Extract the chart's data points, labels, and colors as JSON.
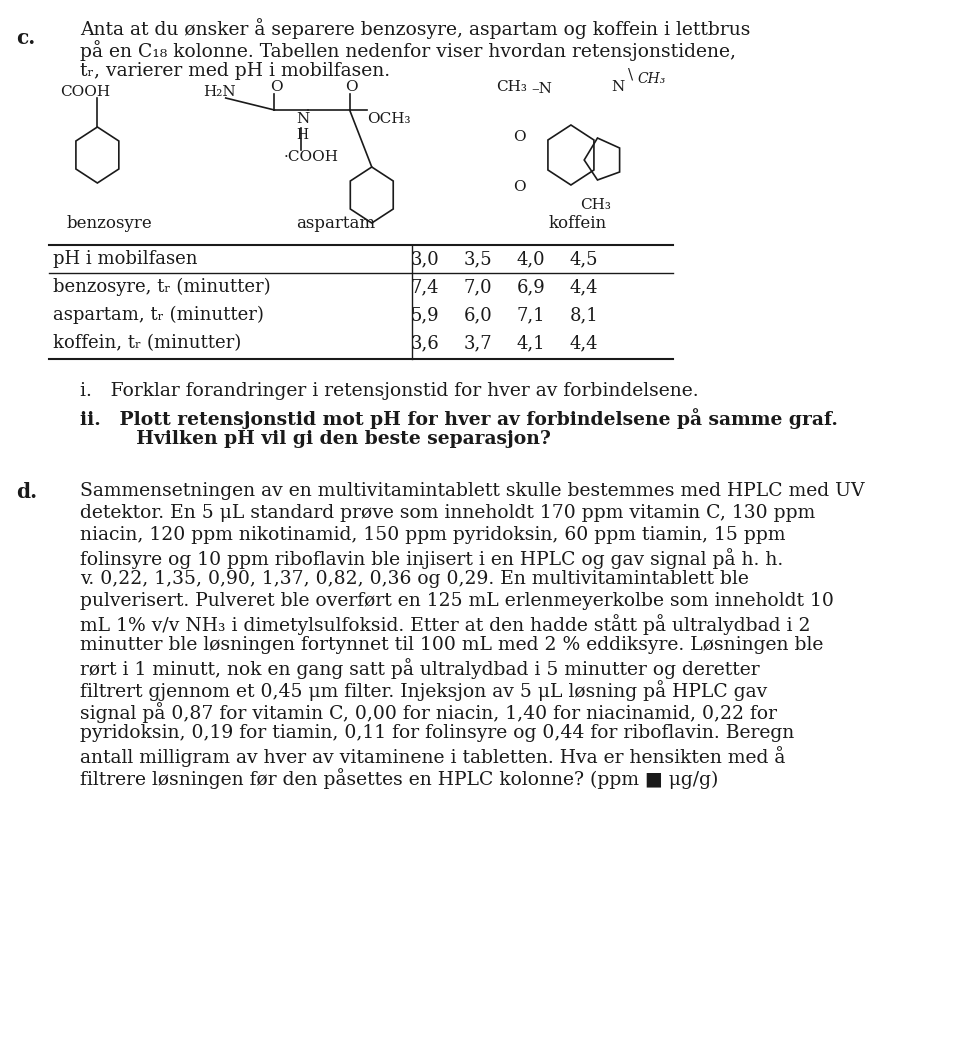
{
  "background_color": "#f5f5f0",
  "text_color": "#1a1a1a",
  "figsize": [
    9.6,
    10.44
  ],
  "dpi": 100,
  "c_label": "c.",
  "c_text_line1": "Anta at du ønsker å separere benzosyre, aspartam og koffein i lettbrus",
  "c_text_line2": "på en C₁₈ kolonne. Tabellen nedenfor viser hvordan retensjonstidene,",
  "c_text_line3": "tᵣ, varierer med pH i mobilfasen.",
  "chem_benzosyre": "benzosyre",
  "chem_aspartam": "aspartam",
  "chem_koffein": "koffein",
  "table_header": [
    "pH i mobilfasen",
    "3,0",
    "3,5",
    "4,0",
    "4,5"
  ],
  "table_row1": [
    "benzosyre, tᵣ (minutter)",
    "7,4",
    "7,0",
    "6,9",
    "4,4"
  ],
  "table_row2": [
    "aspartam, tᵣ (minutter)",
    "5,9",
    "6,0",
    "7,1",
    "8,1"
  ],
  "table_row3": [
    "koffein, tᵣ (minutter)",
    "3,6",
    "3,7",
    "4,1",
    "4,4"
  ],
  "i_text": "i. Forklar forandringer i retensjonstid for hver av forbindelsene.",
  "ii_text_line1": "ii. Plott retensjonstid mot pH for hver av forbindelsene på samme graf.",
  "ii_text_line2": "   Hvilken pH vil gi den beste separasjon?",
  "d_label": "d.",
  "d_text": "Sammensetningen av en multivitamintablett skulle bestemmes med HPLC med UV detektor. En 5 μL standard prøve som inneholdt 170 ppm vitamin C, 130 ppm niacin, 120 ppm nikotinamid, 150 ppm pyridoksin, 60 ppm tiamin, 15 ppm folinsyre og 10 ppm riboflavin ble injisert i en HPLC og gav signal på h. h. v. 0,22, 1,35, 0,90, 1,37, 0,82, 0,36 og 0,29. En multivitamintablett ble pulverisert. Pulveret ble overført en 125 mL erlenmeyerkolbe som inneholdt 10 mL 1% v/v NH₃ i dimetylsulfoksid. Etter at den hadde stått på ultralydbad i 2 minutter ble løsningen fortynnet til 100 mL med 2 % eddiksyre. Løsningen ble rørt i 1 minutt, nok en gang satt på ultralydbad i 5 minutter og deretter filtrert gjennom et 0,45 μm filter. Injeksjon av 5 μL løsning på HPLC gav signal på 0,87 for vitamin C, 0,00 for niacin, 1,40 for niacinamid, 0,22 for pyridoksin, 0,19 for tiamin, 0,11 for folinsyre og 0,44 for riboflavin. Beregn antall milligram av hver av vitaminene i tabletten. Hva er hensikten med å filtrere løsningen før den påsettes en HPLC kolonne? (ppm ■ μg/g)"
}
